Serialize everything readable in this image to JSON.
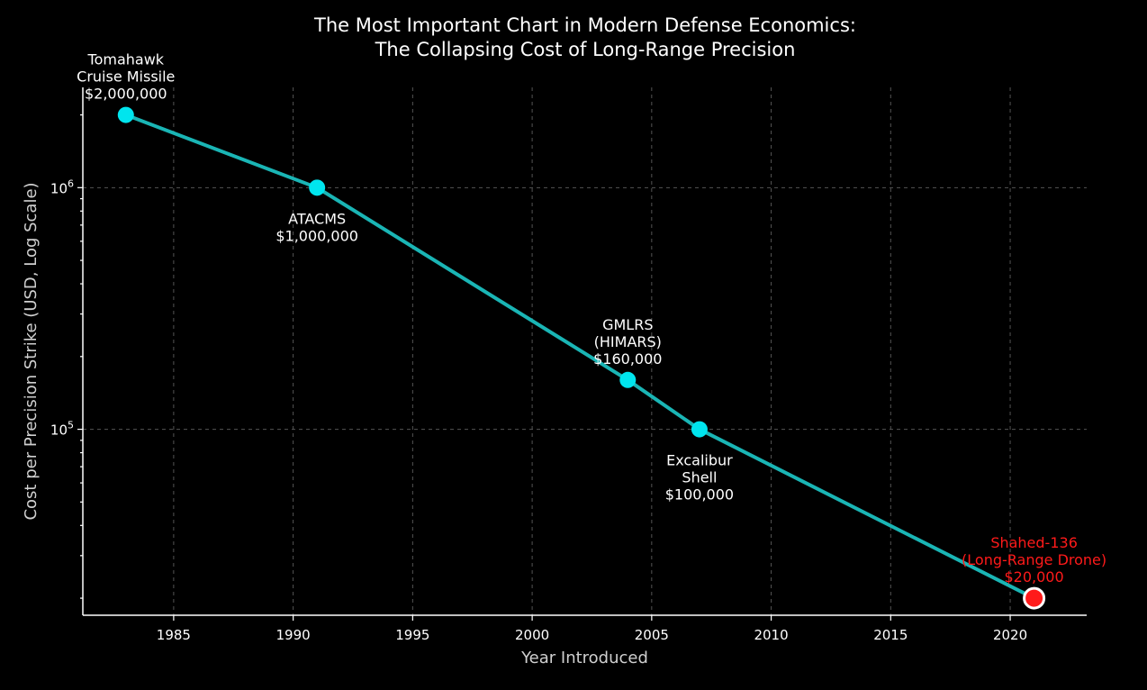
{
  "chart_data": {
    "type": "line",
    "title": [
      "The Most Important Chart in Modern Defense Economics:",
      "The Collapsing Cost of Long-Range Precision"
    ],
    "xlabel": "Year Introduced",
    "ylabel": "Cost per Precision Strike (USD, Log Scale)",
    "x_ticks": [
      1985,
      1990,
      1995,
      2000,
      2005,
      2010,
      2015,
      2020
    ],
    "y_scale": "log",
    "y_major_ticks": [
      {
        "value": 100000,
        "base": "10",
        "exp": "5"
      },
      {
        "value": 1000000,
        "base": "10",
        "exp": "6"
      }
    ],
    "xlim": [
      1981.2,
      2023.2
    ],
    "ylim": [
      17000,
      2600000
    ],
    "grid": true,
    "line_color": "#1ab5b5",
    "marker_color": "#00e5ee",
    "highlight_color": "#ff1a1a",
    "points": [
      {
        "x": 1983,
        "y": 2000000,
        "label": [
          "Tomahawk",
          "Cruise Missile",
          "$2,000,000"
        ],
        "placement": "above"
      },
      {
        "x": 1991,
        "y": 1000000,
        "label": [
          "ATACMS",
          "$1,000,000"
        ],
        "placement": "below"
      },
      {
        "x": 2004,
        "y": 160000,
        "label": [
          "GMLRS",
          "(HIMARS)",
          "$160,000"
        ],
        "placement": "above"
      },
      {
        "x": 2007,
        "y": 100000,
        "label": [
          "Excalibur",
          "Shell",
          "$100,000"
        ],
        "placement": "below"
      },
      {
        "x": 2021,
        "y": 20000,
        "label": [
          "Shahed-136",
          "(Long-Range Drone)",
          "$20,000"
        ],
        "placement": "above",
        "highlight": true
      }
    ]
  }
}
